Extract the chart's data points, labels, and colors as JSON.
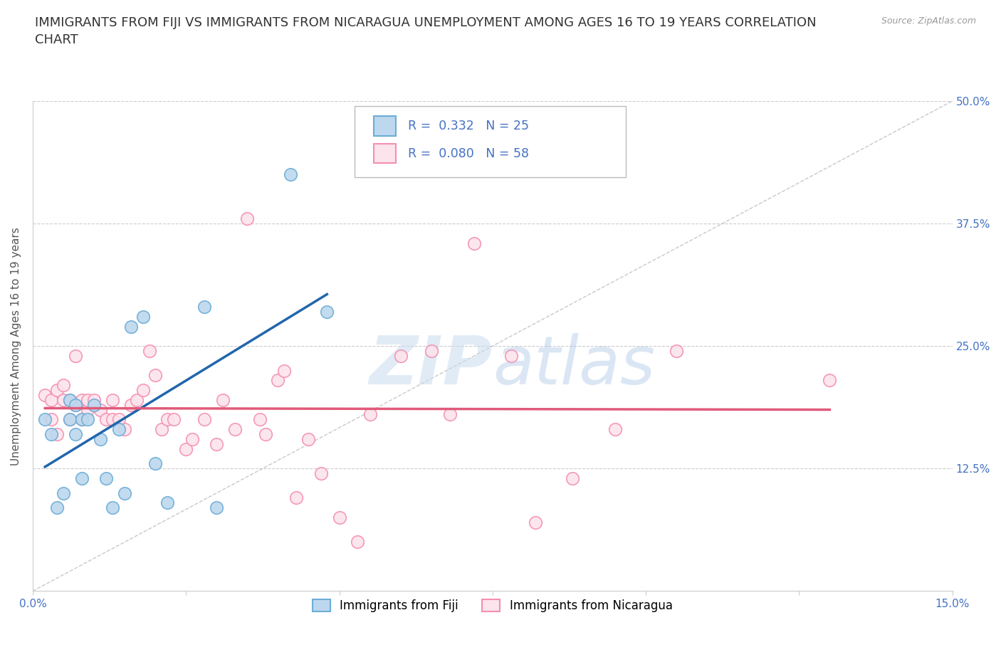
{
  "title": "IMMIGRANTS FROM FIJI VS IMMIGRANTS FROM NICARAGUA UNEMPLOYMENT AMONG AGES 16 TO 19 YEARS CORRELATION\nCHART",
  "source": "Source: ZipAtlas.com",
  "ylabel": "Unemployment Among Ages 16 to 19 years",
  "xlim": [
    0.0,
    0.15
  ],
  "ylim": [
    0.0,
    0.5
  ],
  "xticks": [
    0.0,
    0.025,
    0.05,
    0.075,
    0.1,
    0.125,
    0.15
  ],
  "xticklabels": [
    "0.0%",
    "",
    "",
    "",
    "",
    "",
    "15.0%"
  ],
  "ytick_positions": [
    0.0,
    0.125,
    0.25,
    0.375,
    0.5
  ],
  "ytick_labels_right": [
    "",
    "12.5%",
    "25.0%",
    "37.5%",
    "50.0%"
  ],
  "fiji_R": 0.332,
  "fiji_N": 25,
  "nicaragua_R": 0.08,
  "nicaragua_N": 58,
  "fiji_color": "#6baed6",
  "fiji_fill": "#bdd7ee",
  "nicaragua_color": "#f48fb1",
  "nicaragua_fill": "#fce4ec",
  "trend_fiji_color": "#2166ac",
  "trend_nicaragua_color": "#e05a7a",
  "trend_reference_color": "#bbbbbb",
  "fiji_x": [
    0.002,
    0.003,
    0.004,
    0.005,
    0.006,
    0.006,
    0.007,
    0.007,
    0.008,
    0.008,
    0.009,
    0.01,
    0.011,
    0.012,
    0.013,
    0.014,
    0.015,
    0.016,
    0.018,
    0.02,
    0.022,
    0.028,
    0.03,
    0.042,
    0.048
  ],
  "fiji_y": [
    0.175,
    0.16,
    0.085,
    0.1,
    0.195,
    0.175,
    0.19,
    0.16,
    0.175,
    0.115,
    0.175,
    0.19,
    0.155,
    0.115,
    0.085,
    0.165,
    0.1,
    0.27,
    0.28,
    0.13,
    0.09,
    0.29,
    0.085,
    0.425,
    0.285
  ],
  "nicaragua_x": [
    0.002,
    0.003,
    0.003,
    0.004,
    0.004,
    0.005,
    0.005,
    0.006,
    0.006,
    0.007,
    0.007,
    0.008,
    0.008,
    0.009,
    0.009,
    0.01,
    0.01,
    0.011,
    0.012,
    0.013,
    0.013,
    0.014,
    0.015,
    0.016,
    0.017,
    0.018,
    0.019,
    0.02,
    0.021,
    0.022,
    0.023,
    0.025,
    0.026,
    0.028,
    0.03,
    0.031,
    0.033,
    0.035,
    0.037,
    0.038,
    0.04,
    0.041,
    0.043,
    0.045,
    0.047,
    0.05,
    0.053,
    0.055,
    0.06,
    0.065,
    0.068,
    0.072,
    0.078,
    0.082,
    0.088,
    0.095,
    0.105,
    0.13
  ],
  "nicaragua_y": [
    0.2,
    0.175,
    0.195,
    0.205,
    0.16,
    0.195,
    0.21,
    0.175,
    0.195,
    0.19,
    0.24,
    0.195,
    0.175,
    0.185,
    0.195,
    0.19,
    0.195,
    0.185,
    0.175,
    0.195,
    0.175,
    0.175,
    0.165,
    0.19,
    0.195,
    0.205,
    0.245,
    0.22,
    0.165,
    0.175,
    0.175,
    0.145,
    0.155,
    0.175,
    0.15,
    0.195,
    0.165,
    0.38,
    0.175,
    0.16,
    0.215,
    0.225,
    0.095,
    0.155,
    0.12,
    0.075,
    0.05,
    0.18,
    0.24,
    0.245,
    0.18,
    0.355,
    0.24,
    0.07,
    0.115,
    0.165,
    0.245,
    0.215
  ],
  "watermark_top": "ZIP",
  "watermark_bottom": "atlas",
  "background_color": "#ffffff",
  "grid_color": "#cccccc",
  "label_color": "#4472c4",
  "title_fontsize": 13,
  "axis_label_fontsize": 11,
  "tick_fontsize": 11,
  "legend_fontsize": 12
}
